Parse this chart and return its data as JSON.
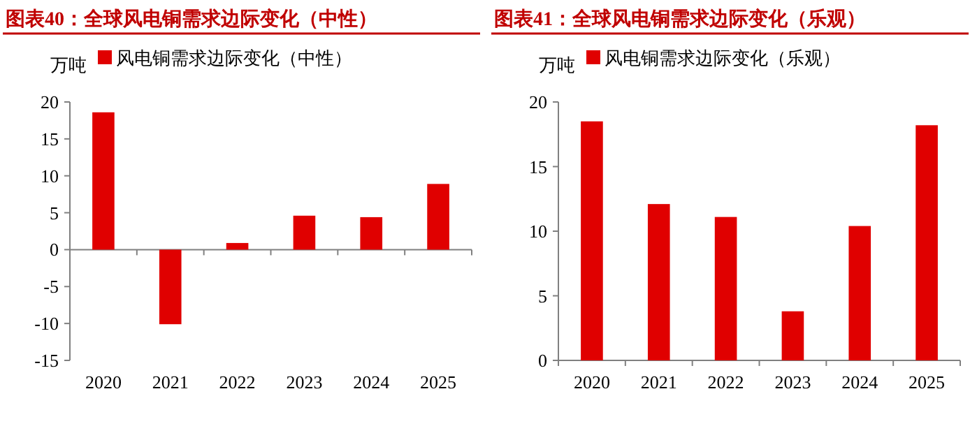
{
  "chart_data": [
    {
      "type": "bar",
      "title": "图表40：全球风电铜需求边际变化（中性）",
      "ylabel": "万吨",
      "categories": [
        "2020",
        "2021",
        "2022",
        "2023",
        "2024",
        "2025"
      ],
      "series": [
        {
          "name": "风电铜需求边际变化（中性）",
          "color": "#e00000",
          "values": [
            18.6,
            -10.1,
            0.9,
            4.6,
            4.4,
            8.9
          ]
        }
      ],
      "ylim": [
        -15,
        20
      ],
      "yticks": [
        -15,
        -10,
        -5,
        0,
        5,
        10,
        15,
        20
      ],
      "legend": "top"
    },
    {
      "type": "bar",
      "title": "图表41：全球风电铜需求边际变化（乐观）",
      "ylabel": "万吨",
      "categories": [
        "2020",
        "2021",
        "2022",
        "2023",
        "2024",
        "2025"
      ],
      "series": [
        {
          "name": "风电铜需求边际变化（乐观）",
          "color": "#e00000",
          "values": [
            18.5,
            12.1,
            11.1,
            3.8,
            10.4,
            18.2
          ]
        }
      ],
      "ylim": [
        0,
        20
      ],
      "yticks": [
        0,
        5,
        10,
        15,
        20
      ],
      "legend": "top"
    }
  ]
}
